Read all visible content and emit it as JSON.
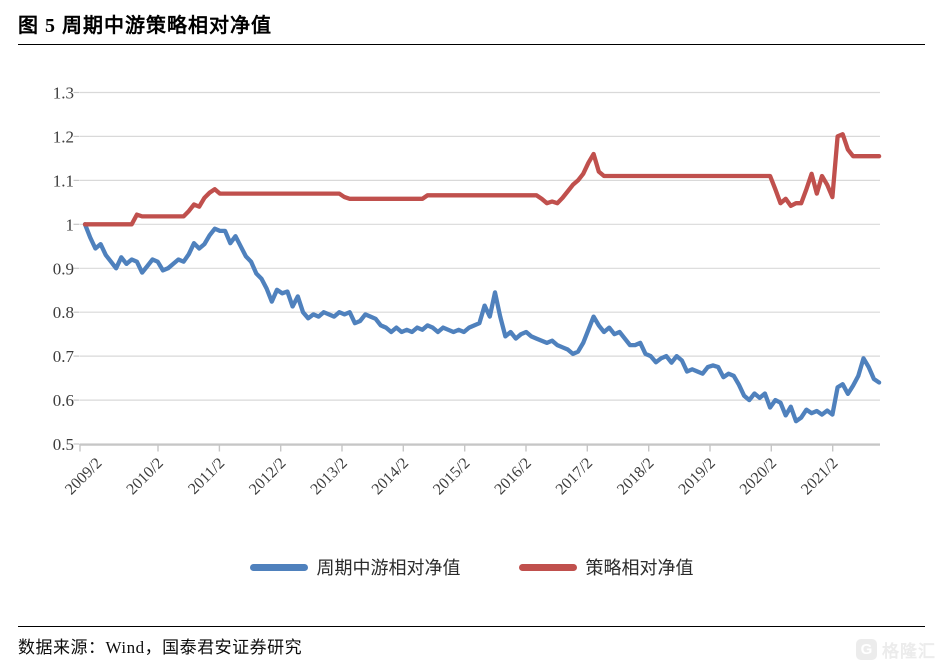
{
  "header": {
    "title": "图 5 周期中游策略相对净值"
  },
  "footer": {
    "source": "数据来源：Wind，国泰君安证券研究"
  },
  "watermark": {
    "logo_letter": "G",
    "text": "格隆汇"
  },
  "chart_data": {
    "type": "line",
    "title": "图 5 周期中游策略相对净值",
    "x_start": "2009/02",
    "x_freq": "monthly",
    "x_tick_labels": [
      "2009/2",
      "2010/2",
      "2011/2",
      "2012/2",
      "2013/2",
      "2014/2",
      "2015/2",
      "2016/2",
      "2017/2",
      "2018/2",
      "2019/2",
      "2020/2",
      "2021/2"
    ],
    "y_tick_labels": [
      "1.3",
      "1.2",
      "1.1",
      "1",
      "0.9",
      "0.8",
      "0.7",
      "0.6",
      "0.5"
    ],
    "ylim": [
      0.5,
      1.3
    ],
    "grid": "horizontal-only",
    "legend_position": "bottom",
    "colors": {
      "grid": "#d9d9d9",
      "axis": "#c6c6c6",
      "tick_text": "#3d3d3d"
    },
    "series": [
      {
        "name": "周期中游相对净值",
        "color": "#4F81BD",
        "values": [
          1.0,
          0.97,
          0.945,
          0.955,
          0.93,
          0.915,
          0.9,
          0.925,
          0.91,
          0.92,
          0.915,
          0.89,
          0.905,
          0.92,
          0.915,
          0.895,
          0.9,
          0.91,
          0.92,
          0.915,
          0.932,
          0.957,
          0.945,
          0.955,
          0.975,
          0.99,
          0.985,
          0.985,
          0.957,
          0.973,
          0.95,
          0.927,
          0.915,
          0.888,
          0.876,
          0.854,
          0.824,
          0.851,
          0.843,
          0.847,
          0.813,
          0.836,
          0.8,
          0.786,
          0.795,
          0.79,
          0.8,
          0.795,
          0.79,
          0.8,
          0.795,
          0.8,
          0.775,
          0.78,
          0.795,
          0.79,
          0.785,
          0.77,
          0.765,
          0.755,
          0.765,
          0.755,
          0.76,
          0.755,
          0.765,
          0.76,
          0.77,
          0.765,
          0.755,
          0.765,
          0.76,
          0.755,
          0.76,
          0.755,
          0.765,
          0.77,
          0.775,
          0.815,
          0.79,
          0.845,
          0.79,
          0.745,
          0.755,
          0.74,
          0.75,
          0.755,
          0.745,
          0.74,
          0.735,
          0.73,
          0.735,
          0.725,
          0.72,
          0.715,
          0.705,
          0.71,
          0.73,
          0.76,
          0.79,
          0.77,
          0.755,
          0.765,
          0.75,
          0.755,
          0.74,
          0.725,
          0.725,
          0.73,
          0.705,
          0.7,
          0.686,
          0.695,
          0.7,
          0.685,
          0.7,
          0.69,
          0.665,
          0.67,
          0.665,
          0.66,
          0.675,
          0.679,
          0.675,
          0.652,
          0.66,
          0.655,
          0.635,
          0.61,
          0.6,
          0.615,
          0.605,
          0.615,
          0.583,
          0.6,
          0.594,
          0.565,
          0.585,
          0.552,
          0.56,
          0.578,
          0.57,
          0.575,
          0.567,
          0.576,
          0.567,
          0.629,
          0.636,
          0.614,
          0.633,
          0.655,
          0.695,
          0.675,
          0.648,
          0.64
        ]
      },
      {
        "name": "策略相对净值",
        "color": "#C0504D",
        "values": [
          1.0,
          1.0,
          1.0,
          1.0,
          1.0,
          1.0,
          1.0,
          1.0,
          1.0,
          1.0,
          1.022,
          1.018,
          1.018,
          1.018,
          1.018,
          1.018,
          1.018,
          1.018,
          1.018,
          1.018,
          1.03,
          1.045,
          1.04,
          1.06,
          1.072,
          1.08,
          1.07,
          1.07,
          1.07,
          1.07,
          1.07,
          1.07,
          1.07,
          1.07,
          1.07,
          1.07,
          1.07,
          1.07,
          1.07,
          1.07,
          1.07,
          1.07,
          1.07,
          1.07,
          1.07,
          1.07,
          1.07,
          1.07,
          1.07,
          1.07,
          1.062,
          1.058,
          1.058,
          1.058,
          1.058,
          1.058,
          1.058,
          1.058,
          1.058,
          1.058,
          1.058,
          1.058,
          1.058,
          1.058,
          1.058,
          1.058,
          1.066,
          1.066,
          1.066,
          1.066,
          1.066,
          1.066,
          1.066,
          1.066,
          1.066,
          1.066,
          1.066,
          1.066,
          1.066,
          1.066,
          1.066,
          1.066,
          1.066,
          1.066,
          1.066,
          1.066,
          1.066,
          1.066,
          1.058,
          1.048,
          1.052,
          1.048,
          1.06,
          1.075,
          1.09,
          1.1,
          1.115,
          1.14,
          1.16,
          1.12,
          1.11,
          1.11,
          1.11,
          1.11,
          1.11,
          1.11,
          1.11,
          1.11,
          1.11,
          1.11,
          1.11,
          1.11,
          1.11,
          1.11,
          1.11,
          1.11,
          1.11,
          1.11,
          1.11,
          1.11,
          1.11,
          1.11,
          1.11,
          1.11,
          1.11,
          1.11,
          1.11,
          1.11,
          1.11,
          1.11,
          1.11,
          1.11,
          1.11,
          1.08,
          1.048,
          1.058,
          1.042,
          1.048,
          1.048,
          1.08,
          1.115,
          1.07,
          1.11,
          1.09,
          1.062,
          1.2,
          1.205,
          1.17,
          1.155,
          1.155,
          1.155,
          1.155,
          1.155,
          1.155
        ]
      }
    ]
  }
}
